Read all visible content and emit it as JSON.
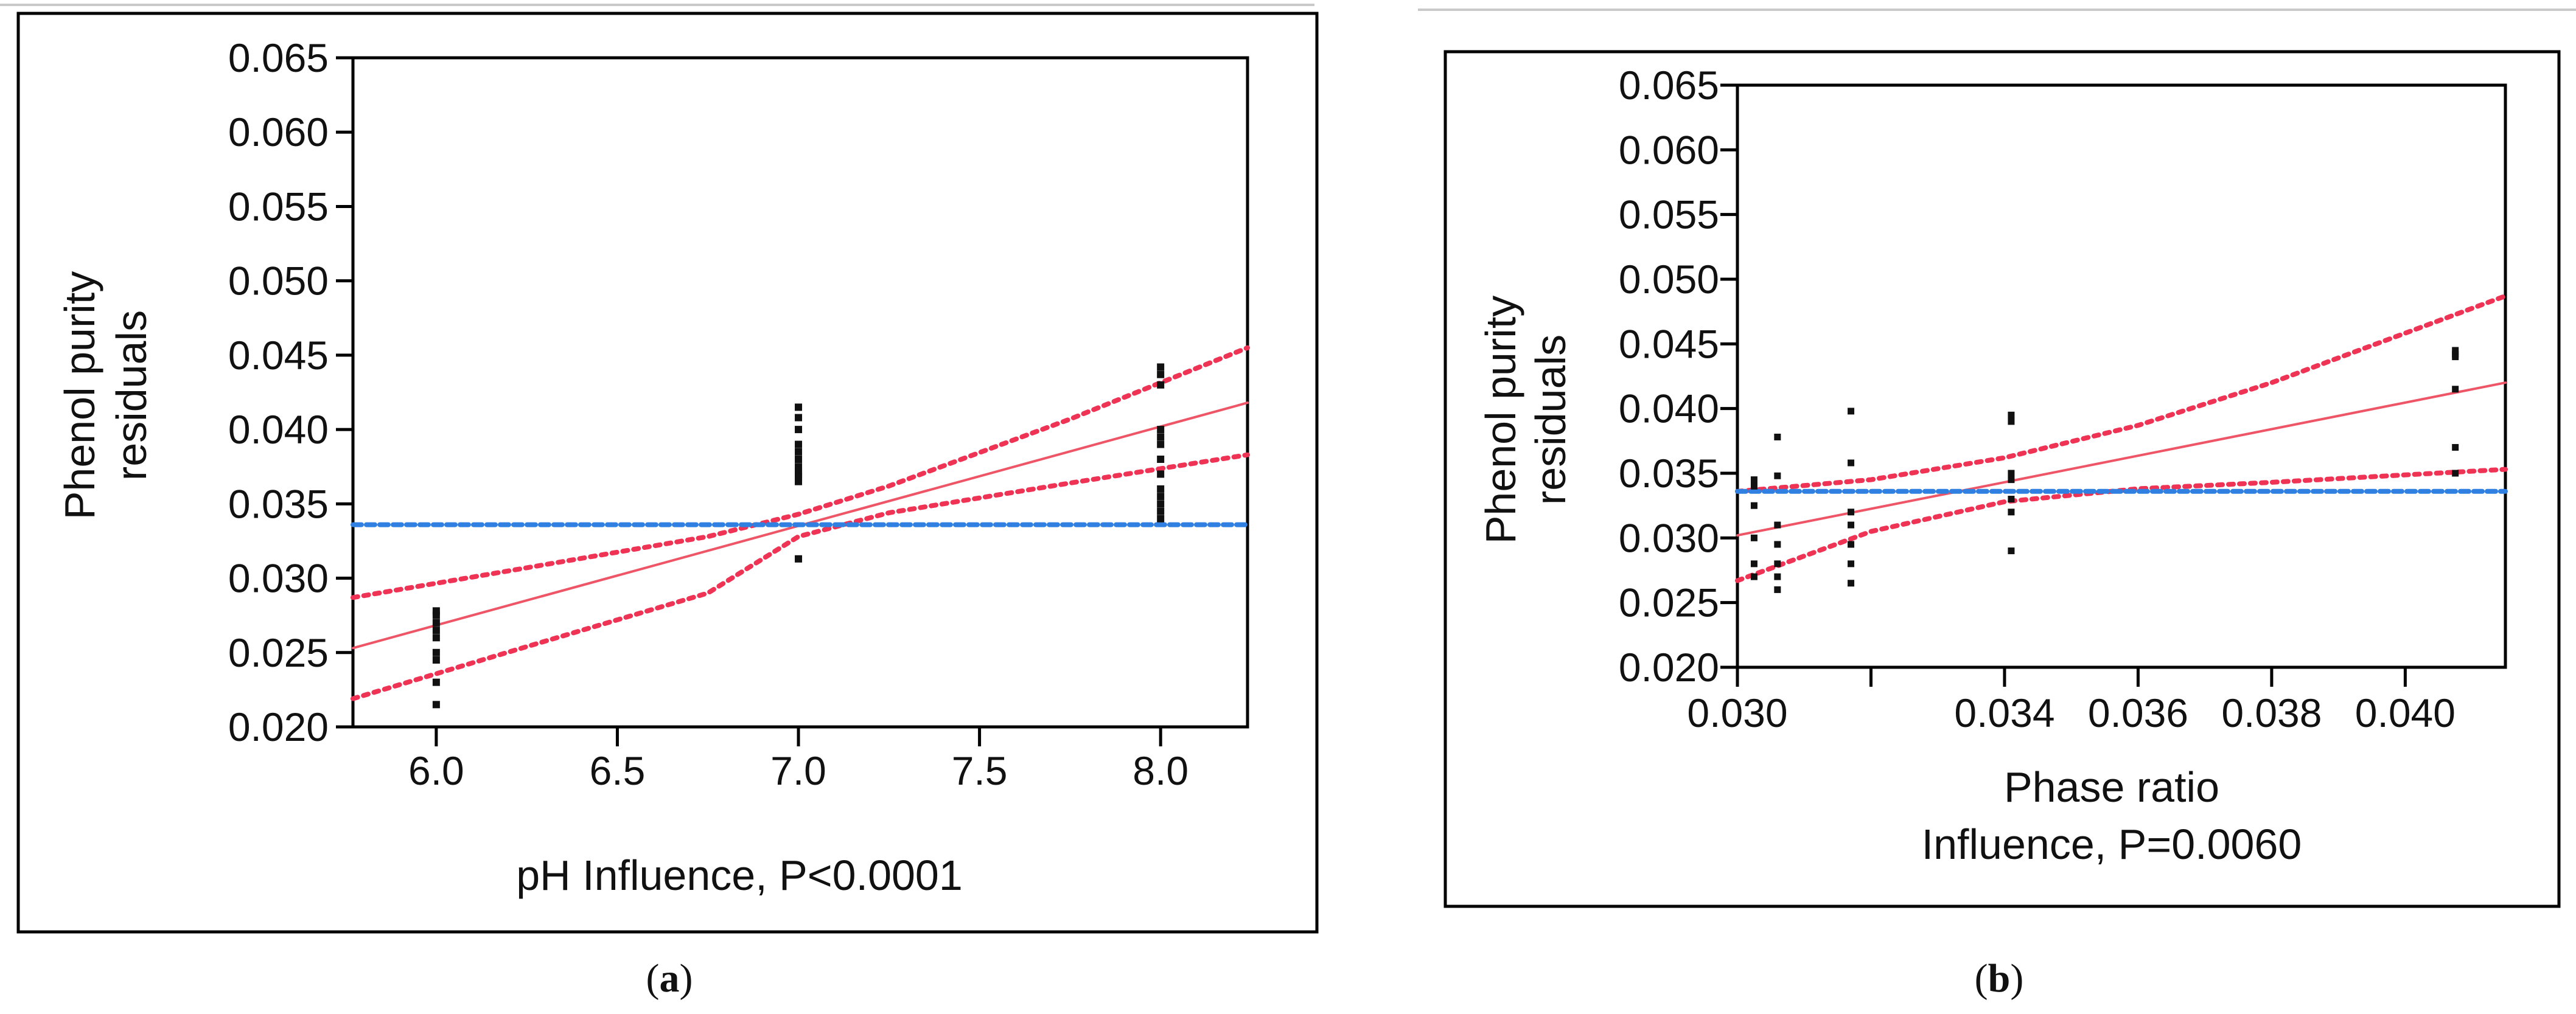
{
  "chart_data": [
    {
      "type": "scatter",
      "panel_label": "a",
      "xlabel": "pH Influence, P<0.0001",
      "ylabel_lines": [
        "Phenol purity",
        "residuals"
      ],
      "xlim": [
        5.77,
        8.24
      ],
      "ylim": [
        0.02,
        0.065
      ],
      "xticks": [
        "6.0",
        "6.5",
        "7.0",
        "7.5",
        "8.0"
      ],
      "yticks": [
        "0.065",
        "0.060",
        "0.055",
        "0.050",
        "0.045",
        "0.040",
        "0.035",
        "0.030",
        "0.025",
        "0.020"
      ],
      "grid": false,
      "series": [
        {
          "name": "residuals",
          "x": [
            6.0,
            6.0,
            6.0,
            6.0,
            6.0,
            6.0,
            6.0,
            6.0,
            6.0,
            7.0,
            7.0,
            7.0,
            7.0,
            7.0,
            7.0,
            7.0,
            7.0,
            7.0,
            7.0,
            7.0,
            7.0,
            7.0,
            7.0,
            8.0,
            8.0,
            8.0,
            8.0,
            8.0,
            8.0,
            8.0,
            8.0,
            8.0,
            8.0,
            8.0,
            8.0,
            8.0
          ],
          "y": [
            0.0215,
            0.023,
            0.0245,
            0.025,
            0.026,
            0.0265,
            0.027,
            0.0275,
            0.0278,
            0.0313,
            0.0365,
            0.0368,
            0.037,
            0.0372,
            0.0375,
            0.038,
            0.0385,
            0.039,
            0.04,
            0.0408,
            0.0415,
            0.037,
            0.0368,
            0.034,
            0.0345,
            0.035,
            0.0355,
            0.036,
            0.037,
            0.038,
            0.039,
            0.0395,
            0.04,
            0.043,
            0.0437,
            0.0442
          ]
        },
        {
          "name": "fit",
          "x": [
            5.77,
            8.24
          ],
          "y": [
            0.0253,
            0.0418
          ]
        },
        {
          "name": "upper confidence",
          "x": [
            5.77,
            6.25,
            6.75,
            7.0,
            7.25,
            7.75,
            8.24
          ],
          "y": [
            0.0287,
            0.0307,
            0.0328,
            0.0343,
            0.0362,
            0.0407,
            0.0455
          ]
        },
        {
          "name": "lower confidence",
          "x": [
            5.77,
            6.25,
            6.75,
            7.0,
            7.25,
            7.75,
            8.24
          ],
          "y": [
            0.0219,
            0.0254,
            0.029,
            0.0328,
            0.0344,
            0.0364,
            0.0383
          ]
        },
        {
          "name": "mean",
          "x": [
            5.77,
            8.24
          ],
          "y": [
            0.0336,
            0.0336
          ]
        }
      ]
    },
    {
      "type": "scatter",
      "panel_label": "b",
      "xlabel_lines": [
        "Phase ratio",
        "Influence, P=0.0060"
      ],
      "ylabel_lines": [
        "Phenol purity",
        "residuals"
      ],
      "xlim": [
        0.03,
        0.0415
      ],
      "ylim": [
        0.02,
        0.065
      ],
      "xticks": [
        "0.030",
        "0.034",
        "0.036",
        "0.038",
        "0.040"
      ],
      "yticks": [
        "0.065",
        "0.060",
        "0.055",
        "0.050",
        "0.045",
        "0.040",
        "0.035",
        "0.030",
        "0.025",
        "0.020"
      ],
      "grid": false,
      "series": [
        {
          "name": "residuals",
          "x": [
            0.03025,
            0.03025,
            0.03025,
            0.03025,
            0.03025,
            0.03025,
            0.0306,
            0.0306,
            0.0306,
            0.0306,
            0.0306,
            0.0306,
            0.0306,
            0.0317,
            0.0317,
            0.0317,
            0.0317,
            0.0317,
            0.0317,
            0.0317,
            0.0341,
            0.0341,
            0.0341,
            0.0341,
            0.0341,
            0.0341,
            0.0341,
            0.04075,
            0.04075,
            0.04075,
            0.04075,
            0.04075,
            0.04075
          ],
          "y": [
            0.0345,
            0.034,
            0.0325,
            0.03,
            0.028,
            0.027,
            0.0378,
            0.0348,
            0.031,
            0.0295,
            0.028,
            0.027,
            0.026,
            0.0398,
            0.0358,
            0.032,
            0.031,
            0.0295,
            0.028,
            0.0265,
            0.0395,
            0.039,
            0.035,
            0.0345,
            0.033,
            0.032,
            0.029,
            0.0445,
            0.0442,
            0.044,
            0.0415,
            0.037,
            0.035
          ]
        },
        {
          "name": "fit",
          "x": [
            0.03,
            0.0415
          ],
          "y": [
            0.0302,
            0.042
          ]
        },
        {
          "name": "upper confidence",
          "x": [
            0.03,
            0.032,
            0.034,
            0.036,
            0.038,
            0.0415
          ],
          "y": [
            0.0336,
            0.0345,
            0.0362,
            0.0387,
            0.042,
            0.0487
          ]
        },
        {
          "name": "lower confidence",
          "x": [
            0.03,
            0.032,
            0.034,
            0.036,
            0.038,
            0.0415
          ],
          "y": [
            0.0267,
            0.0305,
            0.0328,
            0.0338,
            0.0343,
            0.0353
          ]
        },
        {
          "name": "mean",
          "x": [
            0.03,
            0.0415
          ],
          "y": [
            0.0336,
            0.0336
          ]
        }
      ]
    }
  ],
  "colors": {
    "points": "#111111",
    "fit": "#ee5566",
    "confidence": "#ee3355",
    "mean": "#2f80e0",
    "frame": "#000000"
  }
}
